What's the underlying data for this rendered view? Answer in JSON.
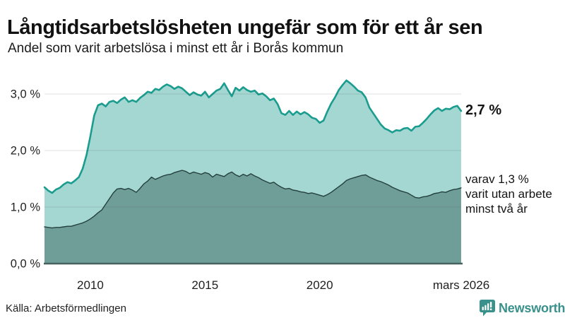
{
  "header": {
    "title": "Långtidsarbetslösheten ungefär som för ett år sen",
    "subtitle": "Andel som varit arbetslösa i minst ett år i Borås kommun"
  },
  "annotations": {
    "latest_value": "2,7 %",
    "secondary": "varav 1,3 %\nvarit utan arbete\nminst två år"
  },
  "footer": {
    "source": "Källa: Arbetsförmedlingen",
    "brand": "Newsworthy"
  },
  "colors": {
    "line_primary": "#1a9c8e",
    "fill_primary": "#a4d7d2",
    "line_secondary": "#24403d",
    "fill_secondary": "#6f9e99",
    "baseline": "#46625f",
    "gridline": "rgba(60,60,60,0.16)",
    "tick_text": "#1f1f1f",
    "brand_teal": "#3a918b"
  },
  "chart_data": {
    "type": "area",
    "title": "Långtidsarbetslösheten ungefär som för ett år sen",
    "subtitle": "Andel som varit arbetslösa i minst ett år i Borås kommun",
    "xlabel": "",
    "ylabel": "",
    "grid": true,
    "legend_position": "right-annotations",
    "xlim": [
      2008.0,
      2026.17
    ],
    "ylim": [
      0,
      3.4
    ],
    "x_start": 2008.0,
    "x_step_years": 0.166667,
    "yticks": [
      {
        "value": 0,
        "label": "0,0 %"
      },
      {
        "value": 1,
        "label": "1,0 %"
      },
      {
        "value": 2,
        "label": "2,0 %"
      },
      {
        "value": 3,
        "label": "3,0 %"
      }
    ],
    "xticks": [
      {
        "value": 2010,
        "label": "2010"
      },
      {
        "value": 2015,
        "label": "2015"
      },
      {
        "value": 2020,
        "label": "2020"
      },
      {
        "value": 2026.17,
        "label": "mars 2026"
      }
    ],
    "series": [
      {
        "name": "Andel som varit arbetslösa i minst ett år",
        "latest_label": "2,7 %",
        "latest_value": 2.7,
        "values": [
          1.35,
          1.29,
          1.25,
          1.31,
          1.34,
          1.4,
          1.44,
          1.42,
          1.47,
          1.53,
          1.68,
          1.92,
          2.25,
          2.62,
          2.8,
          2.83,
          2.78,
          2.86,
          2.88,
          2.84,
          2.9,
          2.94,
          2.86,
          2.89,
          2.86,
          2.93,
          2.98,
          3.04,
          3.02,
          3.09,
          3.07,
          3.13,
          3.17,
          3.14,
          3.09,
          3.13,
          3.1,
          3.04,
          2.98,
          3.03,
          2.99,
          2.97,
          3.04,
          2.94,
          3.0,
          3.06,
          3.09,
          3.19,
          3.07,
          2.96,
          3.11,
          3.06,
          3.12,
          3.07,
          3.04,
          3.06,
          2.99,
          3.01,
          2.96,
          2.89,
          2.92,
          2.82,
          2.66,
          2.63,
          2.7,
          2.63,
          2.69,
          2.64,
          2.68,
          2.64,
          2.58,
          2.56,
          2.49,
          2.53,
          2.69,
          2.83,
          2.94,
          3.07,
          3.16,
          3.24,
          3.19,
          3.13,
          3.06,
          3.03,
          2.94,
          2.76,
          2.66,
          2.56,
          2.46,
          2.39,
          2.36,
          2.32,
          2.36,
          2.35,
          2.39,
          2.4,
          2.35,
          2.42,
          2.43,
          2.49,
          2.56,
          2.64,
          2.71,
          2.75,
          2.7,
          2.74,
          2.73,
          2.77,
          2.79,
          2.7
        ]
      },
      {
        "name": "varav utan arbete minst två år",
        "latest_label": "1,3 %",
        "latest_value": 1.3,
        "values": [
          0.65,
          0.64,
          0.63,
          0.64,
          0.64,
          0.65,
          0.66,
          0.66,
          0.68,
          0.7,
          0.72,
          0.75,
          0.79,
          0.84,
          0.9,
          0.95,
          1.05,
          1.15,
          1.25,
          1.32,
          1.33,
          1.31,
          1.33,
          1.3,
          1.26,
          1.33,
          1.41,
          1.46,
          1.53,
          1.49,
          1.52,
          1.55,
          1.57,
          1.58,
          1.61,
          1.63,
          1.65,
          1.63,
          1.59,
          1.62,
          1.6,
          1.58,
          1.61,
          1.59,
          1.53,
          1.58,
          1.56,
          1.54,
          1.59,
          1.62,
          1.57,
          1.54,
          1.58,
          1.55,
          1.59,
          1.55,
          1.52,
          1.48,
          1.45,
          1.42,
          1.44,
          1.39,
          1.35,
          1.32,
          1.33,
          1.3,
          1.29,
          1.27,
          1.26,
          1.24,
          1.25,
          1.23,
          1.21,
          1.19,
          1.22,
          1.26,
          1.31,
          1.36,
          1.41,
          1.47,
          1.5,
          1.52,
          1.54,
          1.56,
          1.57,
          1.53,
          1.5,
          1.47,
          1.45,
          1.42,
          1.39,
          1.35,
          1.32,
          1.29,
          1.27,
          1.25,
          1.21,
          1.17,
          1.16,
          1.18,
          1.19,
          1.21,
          1.24,
          1.25,
          1.27,
          1.26,
          1.29,
          1.31,
          1.32,
          1.34
        ]
      }
    ]
  }
}
